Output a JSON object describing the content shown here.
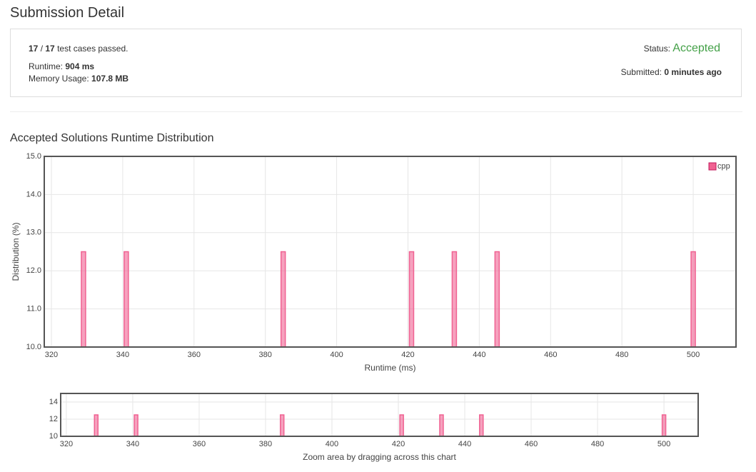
{
  "header": {
    "title": "Submission Detail"
  },
  "summary": {
    "passed": "17",
    "separator": " / ",
    "total": "17",
    "passed_suffix": " test cases passed.",
    "runtime_label": "Runtime:",
    "runtime_value": "904 ms",
    "memory_label": "Memory Usage:",
    "memory_value": "107.8 MB",
    "status_label": "Status:",
    "status_value": "Accepted",
    "submitted_label": "Submitted:",
    "submitted_value": "0 minutes ago"
  },
  "chart_data": [
    {
      "type": "bar",
      "title": "Accepted Solutions Runtime Distribution",
      "x_label": "Runtime (ms)",
      "y_label": "Distribution (%)",
      "x": [
        329,
        341,
        385,
        421,
        433,
        445,
        500
      ],
      "series": [
        {
          "name": "cpp",
          "color": "#f06292",
          "values": [
            12.5,
            12.5,
            12.5,
            12.5,
            12.5,
            12.5,
            12.5
          ]
        }
      ],
      "xlim": [
        318,
        512
      ],
      "xticks": [
        320,
        340,
        360,
        380,
        400,
        420,
        440,
        460,
        480,
        500
      ],
      "ylim": [
        10,
        15
      ],
      "yticks": [
        {
          "value": 10,
          "label": "10.0"
        },
        {
          "value": 11,
          "label": "11.0"
        },
        {
          "value": 12,
          "label": "12.0"
        },
        {
          "value": 13,
          "label": "13.0"
        },
        {
          "value": 14,
          "label": "14.0"
        },
        {
          "value": 15,
          "label": "15.0"
        }
      ],
      "grid": true,
      "legend": "top-right"
    },
    {
      "type": "bar",
      "x_label": "Zoom area by dragging across this chart",
      "x": [
        329,
        341,
        385,
        421,
        433,
        445,
        500
      ],
      "series": [
        {
          "color": "#f06292",
          "values": [
            12.5,
            12.5,
            12.5,
            12.5,
            12.5,
            12.5,
            12.5
          ]
        }
      ],
      "xlim": [
        318.3,
        510.3
      ],
      "xticks": [
        320,
        340,
        360,
        380,
        400,
        420,
        440,
        460,
        480,
        500
      ],
      "ylim": [
        10,
        15
      ],
      "yticks": [
        10,
        12,
        14
      ],
      "grid": true
    }
  ]
}
